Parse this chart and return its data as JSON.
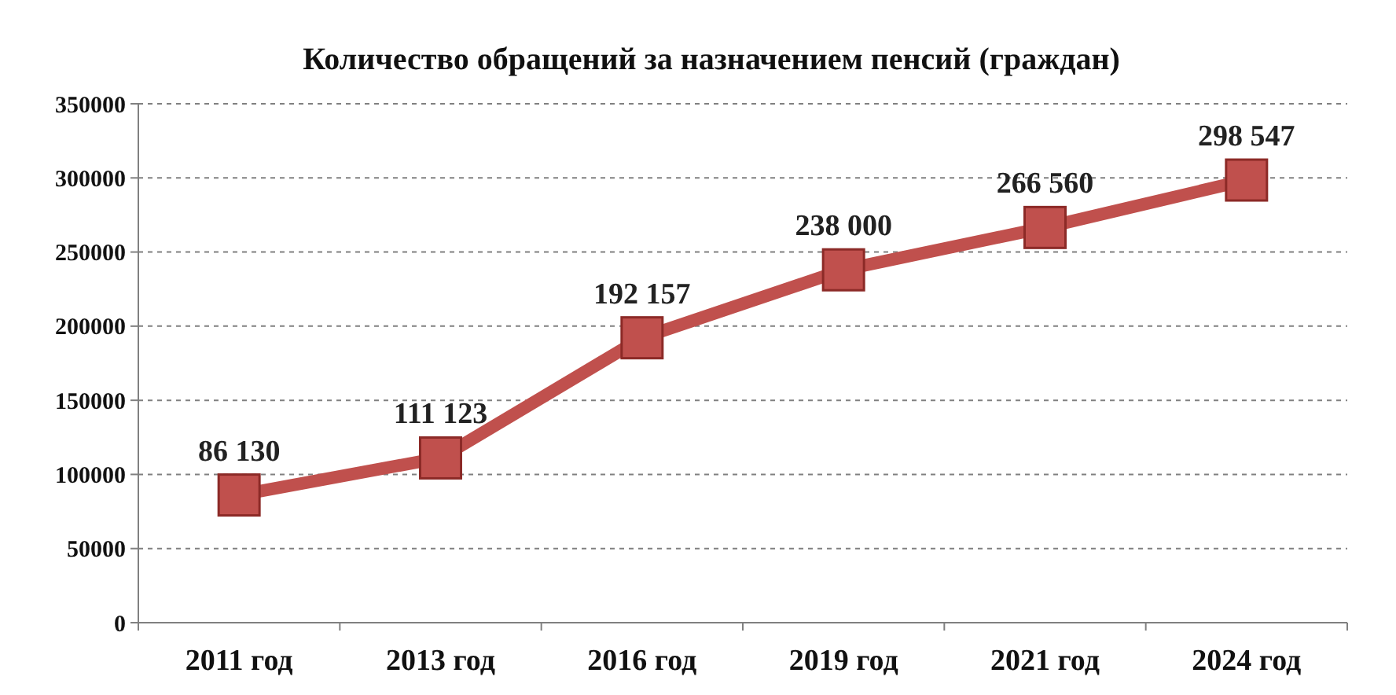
{
  "chart_data": {
    "type": "line",
    "title": "Количество обращений за назначением пенсий (граждан)",
    "categories": [
      "2011 год",
      "2013 год",
      "2016 год",
      "2019 год",
      "2021 год",
      "2024 год"
    ],
    "series": [
      {
        "color": "#c0504d",
        "values": [
          86130,
          111123,
          192157,
          238000,
          266560,
          298547
        ],
        "value_labels": [
          "86 130",
          "111 123",
          "192 157",
          "238 000",
          "266 560",
          "298 547"
        ]
      }
    ],
    "ylim": [
      0,
      350000
    ],
    "yticks": [
      0,
      50000,
      100000,
      150000,
      200000,
      250000,
      300000,
      350000
    ],
    "grid": "y",
    "marker": "square",
    "line_style": "solid"
  }
}
